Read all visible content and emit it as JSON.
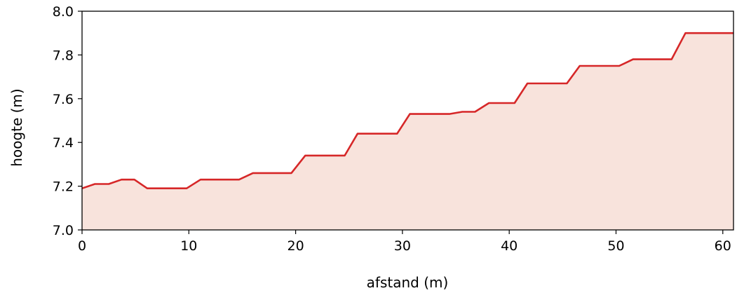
{
  "chart_data": {
    "type": "area",
    "title": "",
    "xlabel": "afstand (m)",
    "ylabel": "hoogte (m)",
    "xlim": [
      0,
      61
    ],
    "ylim": [
      7.0,
      8.0
    ],
    "xticks": [
      "0",
      "10",
      "20",
      "30",
      "40",
      "50",
      "60"
    ],
    "yticks": [
      "7.0",
      "7.2",
      "7.4",
      "7.6",
      "7.8",
      "8.0"
    ],
    "grid": false,
    "line_color": "#d62728",
    "fill_color": "#f8e3dc",
    "series": [
      {
        "x": [
          0,
          1.2,
          2.5,
          3.7,
          4.9,
          6.1,
          7.4,
          8.6,
          9.8,
          11.1,
          12.3,
          13.5,
          14.7,
          16.0,
          17.2,
          18.4,
          19.6,
          20.9,
          22.1,
          23.3,
          24.6,
          25.8,
          27.0,
          28.2,
          29.5,
          30.7,
          31.9,
          33.1,
          34.4,
          35.6,
          36.8,
          38.1,
          39.3,
          40.5,
          41.7,
          43.0,
          44.2,
          45.4,
          46.6,
          47.9,
          49.1,
          50.3,
          51.6,
          52.8,
          54.0,
          55.2,
          56.5,
          57.7,
          58.9,
          60.1,
          61.0
        ],
        "y": [
          7.19,
          7.21,
          7.21,
          7.23,
          7.23,
          7.19,
          7.19,
          7.19,
          7.19,
          7.23,
          7.23,
          7.23,
          7.23,
          7.26,
          7.26,
          7.26,
          7.26,
          7.34,
          7.34,
          7.34,
          7.34,
          7.44,
          7.44,
          7.44,
          7.44,
          7.53,
          7.53,
          7.53,
          7.53,
          7.54,
          7.54,
          7.58,
          7.58,
          7.58,
          7.67,
          7.67,
          7.67,
          7.67,
          7.75,
          7.75,
          7.75,
          7.75,
          7.78,
          7.78,
          7.78,
          7.78,
          7.9,
          7.9,
          7.9,
          7.9,
          7.9
        ]
      }
    ]
  }
}
